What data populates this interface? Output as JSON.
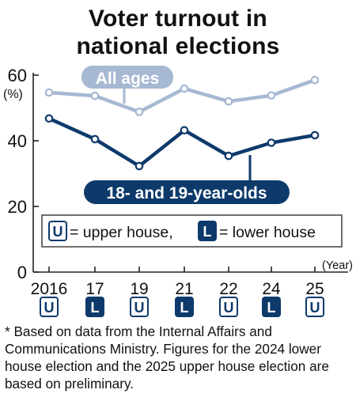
{
  "title_line1": "Voter turnout in",
  "title_line2": "national elections",
  "chart_data": {
    "type": "line",
    "x_unit": "(Year)",
    "y_unit": "(%)",
    "ylim": [
      0,
      60
    ],
    "yticks": [
      0,
      20,
      40,
      60
    ],
    "categories": [
      "2016",
      "17",
      "19",
      "21",
      "22",
      "24",
      "25"
    ],
    "election_types": [
      "U",
      "L",
      "U",
      "L",
      "U",
      "L",
      "U"
    ],
    "series": [
      {
        "name": "All ages",
        "values": [
          54.7,
          53.7,
          48.8,
          55.9,
          52.0,
          53.8,
          58.5
        ],
        "color": "#a6b8d2"
      },
      {
        "name": "18- and 19-year-olds",
        "values": [
          46.8,
          40.5,
          32.3,
          43.2,
          35.4,
          39.4,
          41.7
        ],
        "color": "#0d3a6b"
      }
    ],
    "legend": {
      "upper_symbol": "U",
      "upper_text": "= upper house,",
      "lower_symbol": "L",
      "lower_text": "= lower house"
    },
    "grid": false
  },
  "footnote": "* Based on data from the Internal Affairs and Communications Ministry. Figures for the 2024 lower house election and the 2025 upper house election are based on preliminary."
}
